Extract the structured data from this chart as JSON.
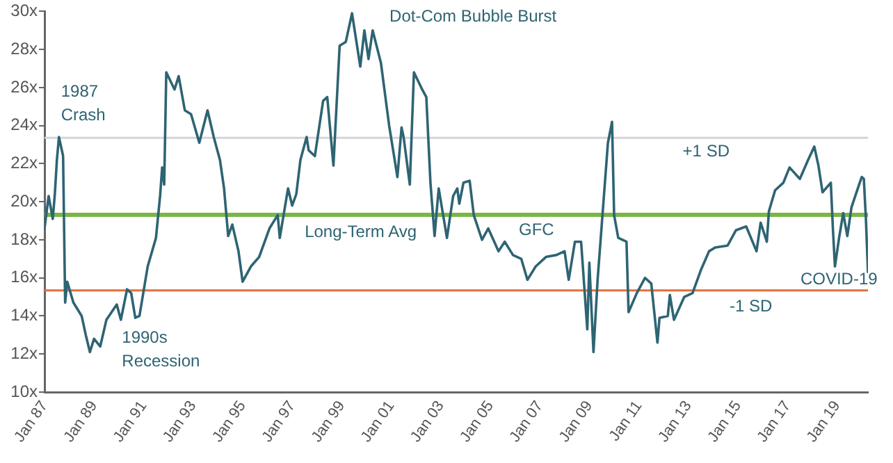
{
  "chart_data": {
    "type": "line",
    "x": [
      "1987-01",
      "1987-03",
      "1987-05",
      "1987-06",
      "1987-07",
      "1987-08",
      "1987-10",
      "1987-11",
      "1987-12",
      "1988-03",
      "1988-07",
      "1988-09",
      "1988-11",
      "1989-01",
      "1989-04",
      "1989-07",
      "1989-12",
      "1990-02",
      "1990-05",
      "1990-07",
      "1990-09",
      "1990-11",
      "1991-03",
      "1991-07",
      "1991-09",
      "1991-10",
      "1991-11",
      "1991-12",
      "1992-04",
      "1992-06",
      "1992-09",
      "1992-12",
      "1993-04",
      "1993-08",
      "1993-11",
      "1994-02",
      "1994-04",
      "1994-06",
      "1994-08",
      "1994-11",
      "1995-01",
      "1995-05",
      "1995-09",
      "1996-02",
      "1996-06",
      "1996-07",
      "1996-11",
      "1997-01",
      "1997-03",
      "1997-05",
      "1997-08",
      "1997-09",
      "1997-12",
      "1998-04",
      "1998-06",
      "1998-09",
      "1998-12",
      "1999-03",
      "1999-06",
      "1999-10",
      "1999-12",
      "2000-02",
      "2000-04",
      "2000-08",
      "2000-12",
      "2001-04",
      "2001-06",
      "2001-07",
      "2001-10",
      "2001-12",
      "2002-04",
      "2002-06",
      "2002-08",
      "2002-10",
      "2002-12",
      "2003-04",
      "2003-07",
      "2003-09",
      "2003-10",
      "2003-12",
      "2004-03",
      "2004-05",
      "2004-09",
      "2004-12",
      "2005-05",
      "2005-08",
      "2005-12",
      "2006-04",
      "2006-07",
      "2006-11",
      "2007-04",
      "2007-09",
      "2008-01",
      "2008-03",
      "2008-06",
      "2008-09",
      "2008-12",
      "2009-01",
      "2009-03",
      "2009-05",
      "2009-10",
      "2009-12",
      "2010-01",
      "2010-03",
      "2010-07",
      "2010-08",
      "2010-12",
      "2011-04",
      "2011-07",
      "2011-10",
      "2011-11",
      "2012-03",
      "2012-04",
      "2012-06",
      "2012-11",
      "2013-03",
      "2013-07",
      "2013-11",
      "2014-02",
      "2014-08",
      "2014-12",
      "2015-05",
      "2015-10",
      "2015-12",
      "2016-03",
      "2016-04",
      "2016-07",
      "2016-11",
      "2017-02",
      "2017-07",
      "2017-11",
      "2018-02",
      "2018-04",
      "2018-06",
      "2018-10",
      "2018-11",
      "2018-12",
      "2019-02",
      "2019-04",
      "2019-06",
      "2019-08",
      "2019-12",
      "2020-01",
      "2020-02",
      "2020-03",
      "2020-04"
    ],
    "series": [
      {
        "color": "#2e6473",
        "values": [
          18.6,
          20.3,
          19.1,
          20.4,
          22.2,
          23.4,
          22.4,
          14.7,
          15.8,
          14.7,
          14.0,
          13.0,
          12.1,
          12.8,
          12.4,
          13.8,
          14.6,
          13.8,
          15.4,
          15.2,
          13.9,
          14.0,
          16.6,
          18.1,
          20.3,
          21.8,
          20.9,
          26.8,
          25.9,
          26.6,
          24.8,
          24.6,
          23.1,
          24.8,
          23.4,
          22.2,
          20.7,
          18.2,
          18.8,
          17.4,
          15.8,
          16.6,
          17.1,
          18.6,
          19.3,
          18.1,
          20.7,
          19.8,
          20.4,
          22.2,
          23.4,
          22.7,
          22.4,
          25.3,
          25.5,
          21.9,
          28.2,
          28.4,
          29.9,
          27.1,
          29.0,
          27.5,
          29.0,
          27.3,
          24.0,
          21.3,
          23.9,
          23.4,
          20.9,
          26.8,
          25.9,
          25.5,
          21.0,
          18.2,
          20.7,
          18.1,
          20.3,
          20.7,
          19.9,
          21.0,
          21.1,
          19.3,
          18.0,
          18.6,
          17.4,
          17.9,
          17.2,
          17.0,
          15.9,
          16.6,
          17.1,
          17.2,
          17.4,
          15.9,
          17.9,
          17.9,
          13.3,
          16.8,
          12.1,
          15.9,
          23.1,
          24.2,
          19.3,
          18.1,
          17.9,
          14.2,
          15.2,
          16.0,
          15.7,
          12.6,
          13.9,
          14.0,
          15.1,
          13.8,
          15.0,
          15.2,
          16.4,
          17.4,
          17.6,
          17.7,
          18.5,
          18.7,
          17.4,
          18.9,
          17.9,
          19.5,
          20.6,
          21.0,
          21.8,
          21.2,
          22.2,
          22.9,
          21.9,
          20.5,
          21.0,
          18.6,
          16.6,
          18.1,
          19.4,
          18.2,
          19.7,
          21.0,
          21.3,
          21.2,
          19.1,
          16.3
        ]
      }
    ],
    "xlim": [
      "1987-01",
      "2020-04"
    ],
    "xticks": [
      {
        "value": "1987-01",
        "label": "Jan 87"
      },
      {
        "value": "1989-01",
        "label": "Jan 89"
      },
      {
        "value": "1991-01",
        "label": "Jan 91"
      },
      {
        "value": "1993-01",
        "label": "Jan 93"
      },
      {
        "value": "1995-01",
        "label": "Jan 95"
      },
      {
        "value": "1997-01",
        "label": "Jan 97"
      },
      {
        "value": "1999-01",
        "label": "Jan 99"
      },
      {
        "value": "2001-01",
        "label": "Jan 01"
      },
      {
        "value": "2003-01",
        "label": "Jan 03"
      },
      {
        "value": "2005-01",
        "label": "Jan 05"
      },
      {
        "value": "2007-01",
        "label": "Jan 07"
      },
      {
        "value": "2009-01",
        "label": "Jan 09"
      },
      {
        "value": "2011-01",
        "label": "Jan 11"
      },
      {
        "value": "2013-01",
        "label": "Jan 13"
      },
      {
        "value": "2015-01",
        "label": "Jan 15"
      },
      {
        "value": "2017-01",
        "label": "Jan 17"
      },
      {
        "value": "2019-01",
        "label": "Jan 19"
      }
    ],
    "ylim": [
      10,
      30
    ],
    "yticks": [
      {
        "value": 10,
        "label": "10x"
      },
      {
        "value": 12,
        "label": "12x"
      },
      {
        "value": 14,
        "label": "14x"
      },
      {
        "value": 16,
        "label": "16x"
      },
      {
        "value": 18,
        "label": "18x"
      },
      {
        "value": 20,
        "label": "20x"
      },
      {
        "value": 22,
        "label": "22x"
      },
      {
        "value": 24,
        "label": "24x"
      },
      {
        "value": 26,
        "label": "26x"
      },
      {
        "value": 28,
        "label": "28x"
      },
      {
        "value": 30,
        "label": "30x"
      }
    ],
    "ref_lines": [
      {
        "axis": "y",
        "value": 23.36,
        "color": "#d4d4dc"
      },
      {
        "axis": "y",
        "value": 19.31,
        "color": "#7ab648"
      },
      {
        "axis": "y",
        "value": 15.34,
        "color": "#e0703a"
      }
    ],
    "annotations": [
      "1987\nCrash",
      "1990s\nRecession",
      "Dot-Com Bubble Burst",
      "Long-Term Avg",
      "GFC",
      "+1 SD",
      "-1 SD",
      "COVID-19"
    ],
    "grid": false,
    "legend": false,
    "marker": "none",
    "line_style": "solid"
  }
}
